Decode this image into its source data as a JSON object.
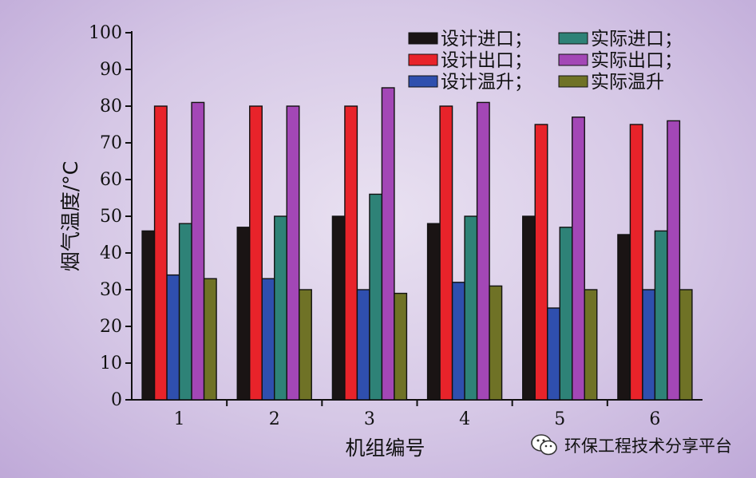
{
  "chart_data": {
    "type": "bar",
    "categories": [
      "1",
      "2",
      "3",
      "4",
      "5",
      "6"
    ],
    "xlabel": "机组编号",
    "ylabel": "烟气温度/°C",
    "ylim": [
      0,
      100
    ],
    "yticks": [
      0,
      10,
      20,
      30,
      40,
      50,
      60,
      70,
      80,
      90,
      100
    ],
    "grid": false,
    "legend_position": "top-right",
    "series": [
      {
        "name": "设计进口",
        "legend_text": "设计进口；",
        "color": "#1a1414",
        "values": [
          46,
          47,
          50,
          48,
          50,
          45
        ]
      },
      {
        "name": "设计出口",
        "legend_text": "设计出口；",
        "color": "#e8232a",
        "values": [
          80,
          80,
          80,
          80,
          75,
          75
        ]
      },
      {
        "name": "设计温升",
        "legend_text": "设计温升；",
        "color": "#2f4fae",
        "values": [
          34,
          33,
          30,
          32,
          25,
          30
        ]
      },
      {
        "name": "实际进口",
        "legend_text": "实际进口；",
        "color": "#2e8277",
        "values": [
          48,
          50,
          56,
          50,
          47,
          46
        ]
      },
      {
        "name": "实际出口",
        "legend_text": "实际出口；",
        "color": "#a347b6",
        "values": [
          81,
          80,
          85,
          81,
          77,
          76
        ]
      },
      {
        "name": "实际温升",
        "legend_text": "实际温升",
        "color": "#6f7226",
        "values": [
          33,
          30,
          29,
          31,
          30,
          30
        ]
      }
    ]
  },
  "watermark": {
    "text": "环保工程技术分享平台",
    "icon": "wechat-icon"
  }
}
